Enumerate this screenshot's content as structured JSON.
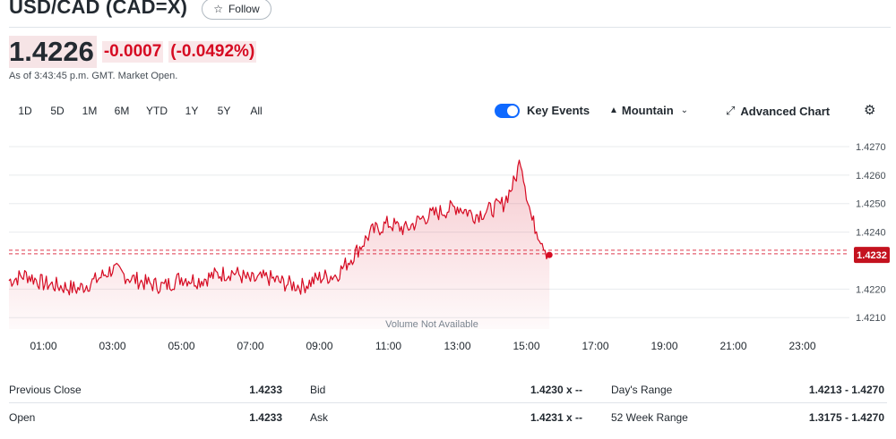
{
  "header": {
    "title": "USD/CAD (CAD=X)",
    "follow_label": "Follow",
    "price": "1.4226",
    "change": "-0.0007",
    "change_pct": "(-0.0492%)",
    "as_of": "As of 3:43:45 p.m. GMT. Market Open."
  },
  "range_tabs": [
    "1D",
    "5D",
    "1M",
    "6M",
    "YTD",
    "1Y",
    "5Y",
    "All"
  ],
  "toolbar": {
    "key_events_label": "Key Events",
    "key_events_on": true,
    "chart_type_label": "Mountain",
    "advanced_label": "Advanced Chart"
  },
  "chart_data": {
    "type": "area",
    "y_ticks": [
      "1.4270",
      "1.4260",
      "1.4250",
      "1.4240",
      "1.4220",
      "1.4210"
    ],
    "ylim": [
      1.4206,
      1.4275
    ],
    "x_ticks": [
      "01:00",
      "03:00",
      "05:00",
      "07:00",
      "09:00",
      "11:00",
      "13:00",
      "15:00",
      "17:00",
      "19:00",
      "21:00",
      "23:00"
    ],
    "previous_close": 1.4233,
    "current_label": "1.4232",
    "volume_note": "Volume Not Available",
    "line_color": "#d60a22",
    "series": [
      {
        "x": [
          "00:00",
          "00:30",
          "01:00",
          "01:30",
          "02:00",
          "02:30",
          "03:00",
          "03:30",
          "04:00",
          "04:30",
          "05:00",
          "05:30",
          "06:00",
          "06:30",
          "07:00",
          "07:30",
          "08:00",
          "08:30",
          "09:00",
          "09:30",
          "10:00",
          "10:30",
          "11:00",
          "11:30",
          "12:00",
          "12:30",
          "13:00",
          "13:30",
          "14:00",
          "14:20",
          "14:40",
          "14:50",
          "15:00",
          "15:10",
          "15:20",
          "15:30",
          "15:35",
          "15:40"
        ],
        "values": [
          1.4223,
          1.4225,
          1.4222,
          1.4221,
          1.422,
          1.4223,
          1.4227,
          1.4224,
          1.4222,
          1.4221,
          1.4224,
          1.4223,
          1.4225,
          1.4226,
          1.4223,
          1.4224,
          1.4222,
          1.4221,
          1.4224,
          1.4225,
          1.4232,
          1.424,
          1.4243,
          1.4241,
          1.4245,
          1.4247,
          1.4249,
          1.4246,
          1.4248,
          1.425,
          1.4258,
          1.4266,
          1.4254,
          1.4244,
          1.424,
          1.4236,
          1.4233,
          1.4232
        ]
      }
    ]
  },
  "stats": [
    {
      "label": "Previous Close",
      "value": "1.4233",
      "label2": "Bid",
      "value2": "1.4230 x --",
      "label3": "Day's Range",
      "value3": "1.4213 - 1.4270"
    },
    {
      "label": "Open",
      "value": "1.4233",
      "label2": "Ask",
      "value2": "1.4231 x --",
      "label3": "52 Week Range",
      "value3": "1.3175 - 1.4270"
    }
  ]
}
